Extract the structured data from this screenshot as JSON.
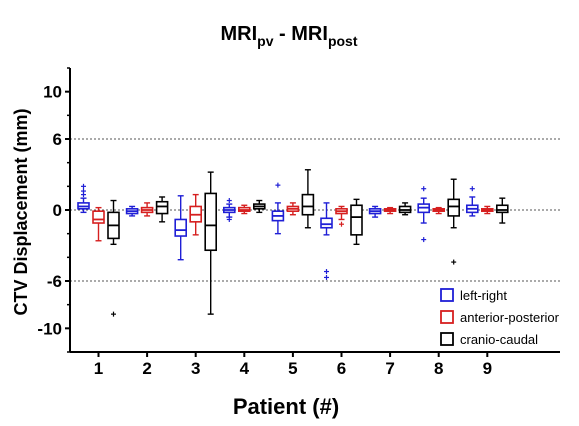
{
  "chart_data": {
    "type": "boxplot",
    "title": {
      "main": "MRI",
      "sub1": "pv",
      "sep": " - MRI",
      "sub2": "post"
    },
    "xlabel": "Patient (#)",
    "ylabel": "CTV Displacement (mm)",
    "ylim": [
      -12,
      12
    ],
    "yticks": [
      10,
      6,
      0,
      -6,
      -10
    ],
    "ytick_labels": [
      "10",
      "6",
      "0",
      "-6",
      "-10"
    ],
    "reference_lines": [
      6,
      0,
      -6
    ],
    "categories": [
      "1",
      "2",
      "3",
      "4",
      "5",
      "6",
      "7",
      "8",
      "9"
    ],
    "series": [
      {
        "name": "left-right",
        "color": "#1f1fd6",
        "boxes": [
          {
            "min": -0.2,
            "q1": 0.1,
            "median": 0.3,
            "q3": 0.6,
            "max": 1.0,
            "outliers": [
              1.3,
              1.6,
              2.0
            ]
          },
          {
            "min": -0.5,
            "q1": -0.3,
            "median": -0.1,
            "q3": 0.1,
            "max": 0.3,
            "outliers": []
          },
          {
            "min": -4.2,
            "q1": -2.2,
            "median": -1.7,
            "q3": -0.8,
            "max": 1.2,
            "outliers": []
          },
          {
            "min": -0.6,
            "q1": -0.2,
            "median": 0.0,
            "q3": 0.2,
            "max": 0.5,
            "outliers": [
              0.8,
              -0.8
            ]
          },
          {
            "min": -2.0,
            "q1": -0.9,
            "median": -0.5,
            "q3": -0.1,
            "max": 0.6,
            "outliers": [
              2.1
            ]
          },
          {
            "min": -2.1,
            "q1": -1.5,
            "median": -1.2,
            "q3": -0.7,
            "max": 0.6,
            "outliers": [
              -5.2,
              -5.7
            ]
          },
          {
            "min": -0.6,
            "q1": -0.3,
            "median": -0.1,
            "q3": 0.1,
            "max": 0.3,
            "outliers": []
          },
          {
            "min": -1.1,
            "q1": -0.2,
            "median": 0.2,
            "q3": 0.5,
            "max": 1.0,
            "outliers": [
              1.8,
              -2.5
            ]
          },
          {
            "min": -0.5,
            "q1": -0.2,
            "median": 0.1,
            "q3": 0.4,
            "max": 1.1,
            "outliers": [
              1.8
            ]
          }
        ]
      },
      {
        "name": "anterior-posterior",
        "color": "#d61f1f",
        "boxes": [
          {
            "min": -2.6,
            "q1": -1.1,
            "median": -0.8,
            "q3": -0.1,
            "max": 0.2,
            "outliers": []
          },
          {
            "min": -0.5,
            "q1": -0.2,
            "median": 0.0,
            "q3": 0.2,
            "max": 0.6,
            "outliers": []
          },
          {
            "min": -2.1,
            "q1": -1.0,
            "median": -0.4,
            "q3": 0.3,
            "max": 1.3,
            "outliers": []
          },
          {
            "min": -0.3,
            "q1": -0.1,
            "median": 0.0,
            "q3": 0.2,
            "max": 0.4,
            "outliers": []
          },
          {
            "min": -0.4,
            "q1": -0.1,
            "median": 0.1,
            "q3": 0.3,
            "max": 0.6,
            "outliers": []
          },
          {
            "min": -0.8,
            "q1": -0.3,
            "median": -0.1,
            "q3": 0.1,
            "max": 0.3,
            "outliers": [
              -1.2
            ]
          },
          {
            "min": -0.3,
            "q1": -0.1,
            "median": 0.0,
            "q3": 0.1,
            "max": 0.2,
            "outliers": []
          },
          {
            "min": -0.3,
            "q1": -0.1,
            "median": 0.0,
            "q3": 0.1,
            "max": 0.2,
            "outliers": []
          },
          {
            "min": -0.3,
            "q1": -0.1,
            "median": 0.0,
            "q3": 0.1,
            "max": 0.3,
            "outliers": []
          }
        ]
      },
      {
        "name": "cranio-caudal",
        "color": "#000000",
        "boxes": [
          {
            "min": -2.9,
            "q1": -2.4,
            "median": -1.3,
            "q3": -0.2,
            "max": 0.8,
            "outliers": [
              -8.8
            ]
          },
          {
            "min": -1.0,
            "q1": -0.3,
            "median": 0.3,
            "q3": 0.7,
            "max": 1.1,
            "outliers": []
          },
          {
            "min": -8.8,
            "q1": -3.4,
            "median": -1.3,
            "q3": 1.4,
            "max": 3.2,
            "outliers": []
          },
          {
            "min": -0.2,
            "q1": 0.1,
            "median": 0.3,
            "q3": 0.5,
            "max": 0.8,
            "outliers": []
          },
          {
            "min": -1.5,
            "q1": -0.4,
            "median": 0.3,
            "q3": 1.3,
            "max": 3.4,
            "outliers": []
          },
          {
            "min": -2.9,
            "q1": -2.1,
            "median": -0.6,
            "q3": 0.4,
            "max": 0.9,
            "outliers": []
          },
          {
            "min": -0.4,
            "q1": -0.2,
            "median": 0.0,
            "q3": 0.3,
            "max": 0.6,
            "outliers": []
          },
          {
            "min": -1.5,
            "q1": -0.5,
            "median": 0.3,
            "q3": 0.9,
            "max": 2.6,
            "outliers": [
              -4.4
            ]
          },
          {
            "min": -1.1,
            "q1": -0.2,
            "median": 0.0,
            "q3": 0.4,
            "max": 1.0,
            "outliers": []
          }
        ]
      }
    ],
    "legend": {
      "position": "bottom-right",
      "entries": [
        "left-right",
        "anterior-posterior",
        "cranio-caudal"
      ]
    },
    "grid": false
  }
}
